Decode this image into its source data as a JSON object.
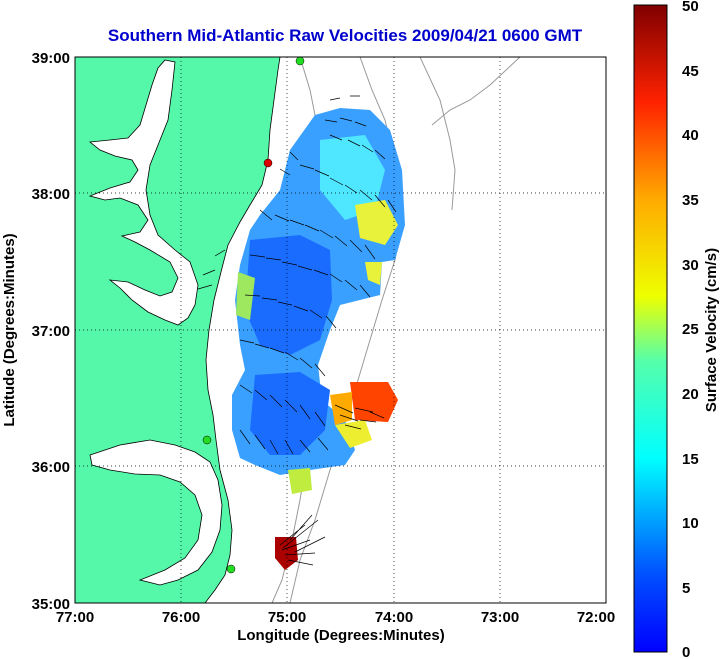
{
  "title": "Southern Mid-Atlantic Raw Velocities 2009/04/21 0600 GMT",
  "axes": {
    "xlabel": "Longitude (Degrees:Minutes)",
    "ylabel": "Latitude (Degrees:Minutes)",
    "xticks": [
      "77:00",
      "76:00",
      "75:00",
      "74:00",
      "73:00",
      "72:00"
    ],
    "yticks": [
      "39:00",
      "38:00",
      "37:00",
      "36:00",
      "35:00"
    ],
    "xrange": [
      -77,
      -72
    ],
    "yrange": [
      35,
      39
    ],
    "grid": "dotted"
  },
  "colorbar": {
    "label": "Surface Velocity (cm/s)",
    "ticks": [
      "50",
      "45",
      "40",
      "35",
      "30",
      "25",
      "20",
      "15",
      "10",
      "5",
      "0"
    ],
    "min": 0,
    "max": 50,
    "colormap": "jet"
  },
  "colors": {
    "land": "#55f7a8",
    "title": "#0000cc",
    "stations_green": "#22dd22",
    "station_red": "#dd0000",
    "bathymetry": "#999999"
  }
}
